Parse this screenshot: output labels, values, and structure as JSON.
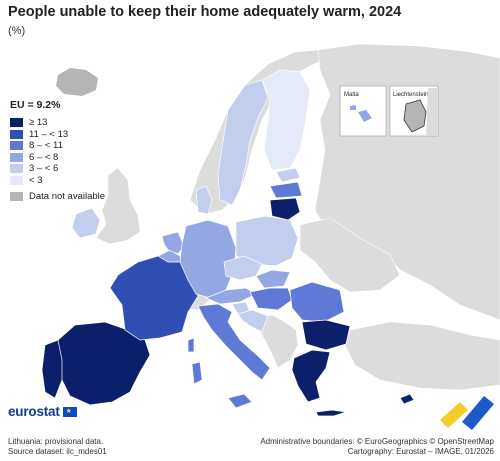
{
  "title": "People unable to keep their home adequately warm, 2024",
  "subtitle": "(%)",
  "eu_value": "EU = 9.2%",
  "legend": [
    {
      "label": "≥ 13",
      "color": "#0b1f6b"
    },
    {
      "label": "11 – < 13",
      "color": "#2f4fb4"
    },
    {
      "label": "8 – < 11",
      "color": "#5e79d6"
    },
    {
      "label": "6 – < 8",
      "color": "#93a7e4"
    },
    {
      "label": "3 – < 6",
      "color": "#c3ceef"
    },
    {
      "label": "< 3",
      "color": "#e6eaf8"
    },
    {
      "label": "Data not available",
      "color": "#b5b5b5"
    }
  ],
  "insets": {
    "malta": "Malta",
    "liechtenstein": "Liechtenstein"
  },
  "logo": {
    "text": "eurostat",
    "flag_icon": "eu-flag-icon"
  },
  "footnotes": {
    "note": "Lithuania: provisional data.",
    "source": "Source dataset: ilc_mdes01",
    "boundaries": "Administrative boundaries: © EuroGeographics © OpenStreetMap",
    "cartography": "Cartography: Eurostat – IMAGE, 01/2026"
  },
  "map_classes": {
    "sea": "#ffffff",
    "non_eu_land": "#dcdcdc",
    "no_data": "#b5b5b5",
    "class_13_plus": "#0b1f6b",
    "class_11_13": "#2f4fb4",
    "class_8_11": "#5e79d6",
    "class_6_8": "#93a7e4",
    "class_3_6": "#c3ceef",
    "class_below_3": "#e6eaf8"
  }
}
